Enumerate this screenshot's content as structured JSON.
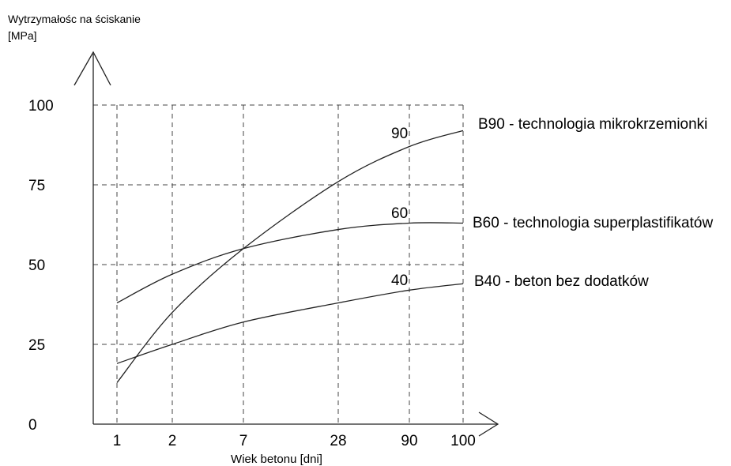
{
  "chart_data": {
    "type": "line",
    "title": "",
    "ylabel_line1": "Wytrzymałośc na ściskanie",
    "ylabel_line2": "[MPa]",
    "xlabel": "Wiek betonu [dni]",
    "x_tick_labels": [
      "1",
      "2",
      "7",
      "28",
      "90",
      "100"
    ],
    "y_ticks": [
      0,
      25,
      50,
      75,
      100
    ],
    "ylim": [
      0,
      100
    ],
    "grid": "dashed",
    "series": [
      {
        "name": "B90 - technologia mikrokrzemionki",
        "annotation": "90",
        "points": [
          [
            1,
            13
          ],
          [
            2,
            35
          ],
          [
            7,
            55
          ],
          [
            28,
            76
          ],
          [
            90,
            87
          ],
          [
            100,
            92
          ]
        ]
      },
      {
        "name": "B60 - technologia superplastifikatów",
        "annotation": "60",
        "points": [
          [
            1,
            38
          ],
          [
            2,
            47
          ],
          [
            7,
            55
          ],
          [
            28,
            61
          ],
          [
            90,
            63
          ],
          [
            100,
            63
          ]
        ]
      },
      {
        "name": "B40 - beton bez dodatków",
        "annotation": "40",
        "points": [
          [
            1,
            19
          ],
          [
            2,
            25
          ],
          [
            7,
            32
          ],
          [
            28,
            38
          ],
          [
            90,
            42
          ],
          [
            100,
            44
          ]
        ]
      }
    ],
    "colors": {
      "line": "#222222",
      "grid": "#444444"
    }
  }
}
